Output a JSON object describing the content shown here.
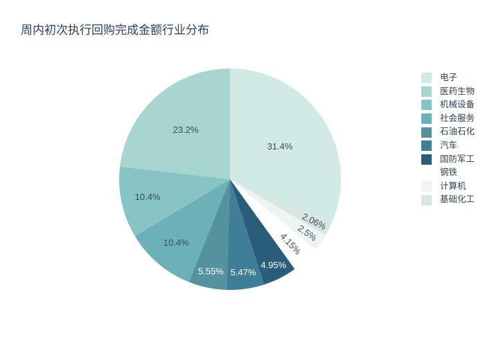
{
  "chart_data": {
    "type": "pie",
    "title": "周内初次执行回购完成金额行业分布",
    "units": "%",
    "legend_position": "right",
    "background_color": "#ffffff",
    "title_color": "#2a3f5f",
    "inside_label_dark_color": "#3b4a5c",
    "inside_label_light_color": "#ffffff",
    "slices_clockwise_from_top": [
      {
        "label": "电子",
        "value": 31.4,
        "text": "31.4%",
        "color": "#d1eae5",
        "label_color": "#3b4a5c",
        "label_radius_frac": 0.54,
        "rotate_label": false
      },
      {
        "label": "基础化工",
        "value": 2.06,
        "text": "2.06%",
        "color": "#d7e5e3",
        "label_color": "#3b4a5c",
        "label_radius_frac": 0.85,
        "rotate_label": true
      },
      {
        "label": "计算机",
        "value": 2.5,
        "text": "2.5%",
        "color": "#edf5f3",
        "label_color": "#3b4a5c",
        "label_radius_frac": 0.85,
        "rotate_label": true
      },
      {
        "label": "钢铁",
        "value": 4.15,
        "text": "4.15%",
        "color": "#ffffff",
        "label_color": "#3b4a5c",
        "label_radius_frac": 0.8,
        "rotate_label": true
      },
      {
        "label": "国防军工",
        "value": 4.95,
        "text": "4.95%",
        "color": "#2a5d7a",
        "label_color": "#ffffff",
        "label_radius_frac": 0.87,
        "rotate_label": false
      },
      {
        "label": "汽车",
        "value": 5.47,
        "text": "5.47%",
        "color": "#3f7e97",
        "label_color": "#ffffff",
        "label_radius_frac": 0.85,
        "rotate_label": false
      },
      {
        "label": "石油石化",
        "value": 5.55,
        "text": "5.55%",
        "color": "#55929f",
        "label_color": "#ffffff",
        "label_radius_frac": 0.85,
        "rotate_label": false
      },
      {
        "label": "社会服务",
        "value": 10.4,
        "text": "10.4%",
        "color": "#6cb0ba",
        "label_color": "#3b4a5c",
        "label_radius_frac": 0.75,
        "rotate_label": false
      },
      {
        "label": "机械设备",
        "value": 10.4,
        "text": "10.4%",
        "color": "#88c4c5",
        "label_color": "#3b4a5c",
        "label_radius_frac": 0.76,
        "rotate_label": false
      },
      {
        "label": "医药生物",
        "value": 23.2,
        "text": "23.2%",
        "color": "#a9d5d1",
        "label_color": "#3b4a5c",
        "label_radius_frac": 0.6,
        "rotate_label": false
      }
    ],
    "legend": [
      {
        "label": "电子",
        "color": "#d1eae5"
      },
      {
        "label": "医药生物",
        "color": "#a9d5d1"
      },
      {
        "label": "机械设备",
        "color": "#88c4c5"
      },
      {
        "label": "社会服务",
        "color": "#6cb0ba"
      },
      {
        "label": "石油石化",
        "color": "#55929f"
      },
      {
        "label": "汽车",
        "color": "#3f7e97"
      },
      {
        "label": "国防军工",
        "color": "#2a5d7a"
      },
      {
        "label": "钢铁",
        "color": "#ffffff"
      },
      {
        "label": "计算机",
        "color": "#edf5f3"
      },
      {
        "label": "基础化工",
        "color": "#d7e5e3"
      }
    ]
  }
}
